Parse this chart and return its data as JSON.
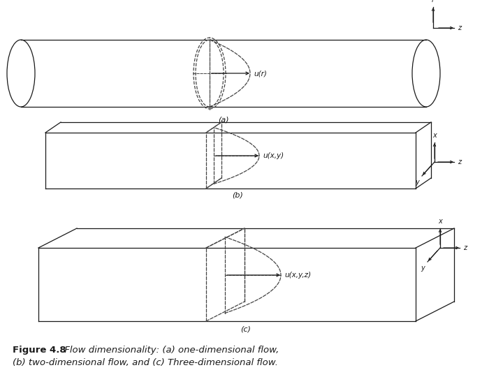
{
  "bg_color": "#ffffff",
  "line_color": "#1a1a1a",
  "dashed_color": "#444444",
  "caption_bold": "Figure 4.8",
  "caption_rest_line1": " Flow dimensionality: (a) one-dimensional flow,",
  "caption_line2": "(b) two-dimensional flow, and (c) Three-dimensional flow.",
  "label_a": "(a)",
  "label_b": "(b)",
  "label_c": "(c)",
  "u_r": "u(r)",
  "u_xy": "u(x,y)",
  "u_xyz": "u(x,y,z)"
}
